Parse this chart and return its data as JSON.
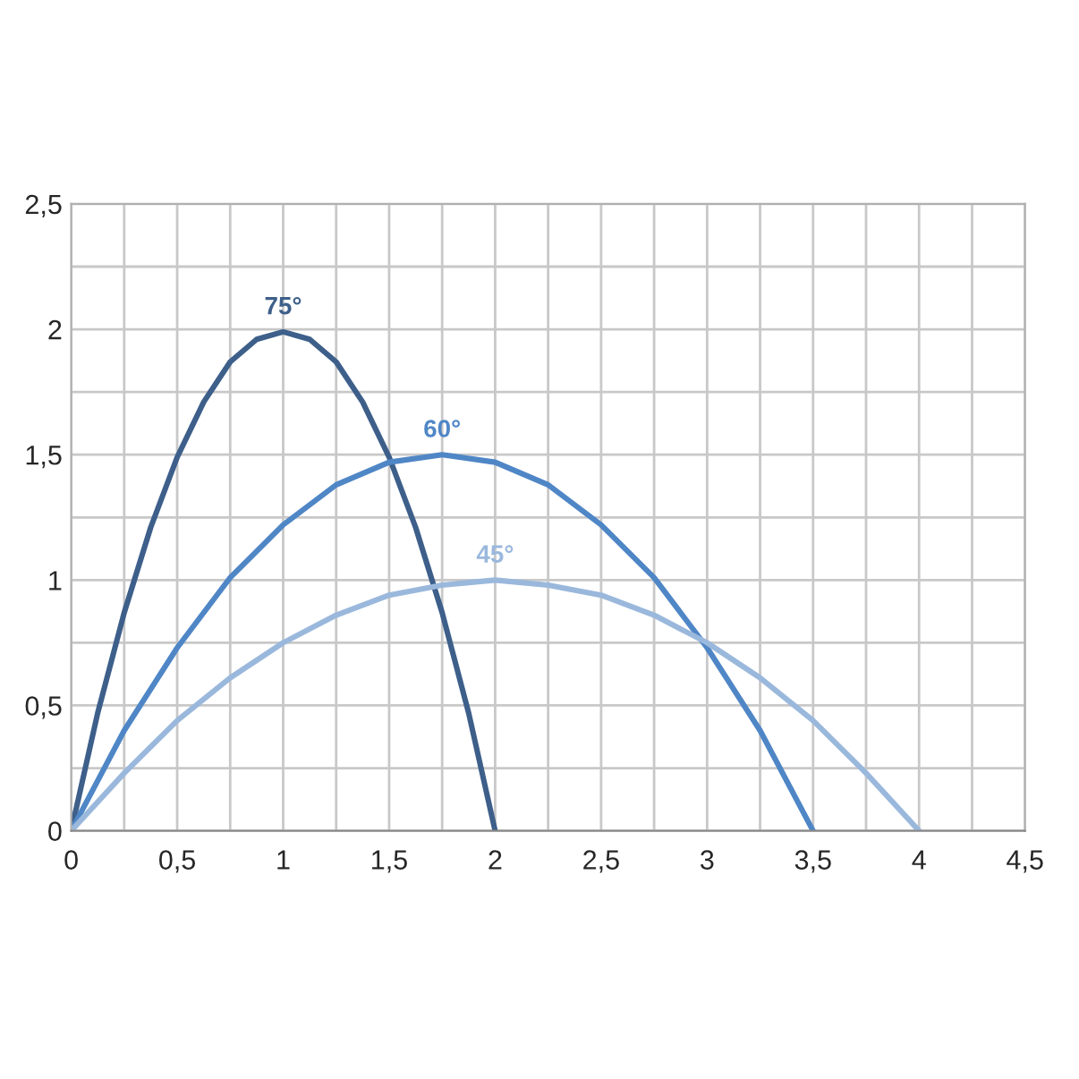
{
  "chart_data": {
    "type": "line",
    "xlim": [
      0,
      4.5
    ],
    "ylim": [
      0,
      2.5
    ],
    "xticks": [
      0,
      {
        "value": 0.25,
        "label": null
      },
      {
        "value": 0.5,
        "label": "0,5"
      },
      {
        "value": 0.75,
        "label": null
      },
      1,
      {
        "value": 1.25,
        "label": null
      },
      {
        "value": 1.5,
        "label": "1,5"
      },
      {
        "value": 1.75,
        "label": null
      },
      2,
      {
        "value": 2.25,
        "label": null
      },
      {
        "value": 2.5,
        "label": "2,5"
      },
      {
        "value": 2.75,
        "label": null
      },
      3,
      {
        "value": 3.25,
        "label": null
      },
      {
        "value": 3.5,
        "label": "3,5"
      },
      {
        "value": 3.75,
        "label": null
      },
      4,
      {
        "value": 4.25,
        "label": null
      },
      {
        "value": 4.5,
        "label": "4,5"
      }
    ],
    "yticks": [
      0,
      {
        "value": 0.25,
        "label": null
      },
      {
        "value": 0.5,
        "label": "0,5"
      },
      {
        "value": 0.75,
        "label": null
      },
      1,
      {
        "value": 1.25,
        "label": null
      },
      {
        "value": 1.5,
        "label": "1,5"
      },
      {
        "value": 1.75,
        "label": null
      },
      2,
      {
        "value": 2.25,
        "label": null
      },
      {
        "value": 2.5,
        "label": "2,5"
      }
    ],
    "grid": true,
    "legend": false,
    "marker": "none",
    "line_style": "solid",
    "series": [
      {
        "name": "75°",
        "color": "#3d5f8a",
        "x": [
          0,
          0.125,
          0.25,
          0.375,
          0.5,
          0.625,
          0.75,
          0.875,
          1,
          1.125,
          1.25,
          1.375,
          1.5,
          1.625,
          1.75,
          1.875,
          2
        ],
        "values": [
          0,
          0.47,
          0.87,
          1.21,
          1.49,
          1.71,
          1.87,
          1.96,
          1.99,
          1.96,
          1.87,
          1.71,
          1.49,
          1.21,
          0.87,
          0.47,
          0
        ]
      },
      {
        "name": "60°",
        "color": "#4f86c6",
        "x": [
          0,
          0.25,
          0.5,
          0.75,
          1,
          1.25,
          1.5,
          1.75,
          2,
          2.25,
          2.5,
          2.75,
          3,
          3.25,
          3.5
        ],
        "values": [
          0,
          0.4,
          0.73,
          1.01,
          1.22,
          1.38,
          1.47,
          1.5,
          1.47,
          1.38,
          1.22,
          1.01,
          0.73,
          0.4,
          0
        ]
      },
      {
        "name": "45°",
        "color": "#9ab8dc",
        "x": [
          0,
          0.25,
          0.5,
          0.75,
          1,
          1.25,
          1.5,
          1.75,
          2,
          2.25,
          2.5,
          2.75,
          3,
          3.25,
          3.5,
          3.75,
          4
        ],
        "values": [
          0,
          0.23,
          0.44,
          0.61,
          0.75,
          0.86,
          0.94,
          0.98,
          1,
          0.98,
          0.94,
          0.86,
          0.75,
          0.61,
          0.44,
          0.23,
          0
        ]
      }
    ]
  }
}
